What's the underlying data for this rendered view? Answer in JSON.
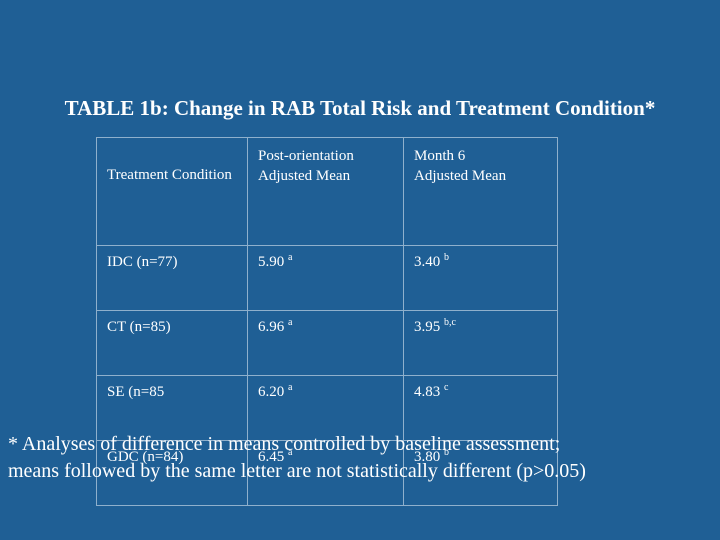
{
  "title": "TABLE 1b: Change in RAB Total Risk and Treatment Condition*",
  "table": {
    "headers": {
      "c1": "Treatment Condition",
      "c2_line1": "Post-orientation",
      "c2_line2": "Adjusted Mean",
      "c3_line1": "Month 6",
      "c3_line2": "Adjusted Mean"
    },
    "rows": [
      {
        "condition": "IDC (n=77)",
        "post_value": "5.90",
        "post_sup": "a",
        "month6_value": "3.40",
        "month6_sup": "b"
      },
      {
        "condition": "CT (n=85)",
        "post_value": "6.96",
        "post_sup": "a",
        "month6_value": "3.95",
        "month6_sup": "b,c"
      },
      {
        "condition": "SE (n=85",
        "post_value": "6.20",
        "post_sup": "a",
        "month6_value": "4.83",
        "month6_sup": "c"
      },
      {
        "condition": "GDC (n=84)",
        "post_value": "6.45",
        "post_sup": "a",
        "month6_value": "3.80",
        "month6_sup": "b"
      }
    ]
  },
  "footnote": {
    "line1": "* Analyses of difference in means controlled by baseline assessment;",
    "line2": "means followed by the same letter are not statistically different (p>0.05)"
  }
}
